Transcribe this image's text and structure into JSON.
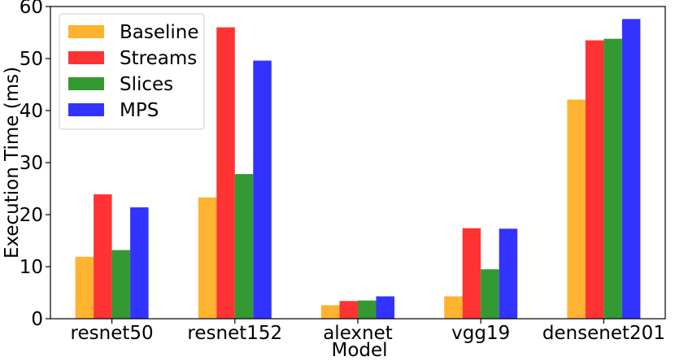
{
  "chart_data": {
    "type": "bar",
    "title": "",
    "xlabel": "Model",
    "ylabel": "Execution Time (ms)",
    "ylim": [
      0,
      60
    ],
    "yticks": [
      0,
      10,
      20,
      30,
      40,
      50,
      60
    ],
    "categories": [
      "resnet50",
      "resnet152",
      "alexnet",
      "vgg19",
      "densenet201"
    ],
    "series": [
      {
        "name": "Baseline",
        "color": "#FFB330",
        "values": [
          11.9,
          23.3,
          2.6,
          4.3,
          42.1
        ]
      },
      {
        "name": "Streams",
        "color": "#FF3333",
        "values": [
          23.9,
          56.0,
          3.4,
          17.4,
          53.5
        ]
      },
      {
        "name": "Slices",
        "color": "#339933",
        "values": [
          13.2,
          27.8,
          3.5,
          9.5,
          53.8
        ]
      },
      {
        "name": "MPS",
        "color": "#3333FF",
        "values": [
          21.4,
          49.6,
          4.3,
          17.3,
          57.6
        ]
      }
    ],
    "grid": false,
    "legend": "top-left"
  }
}
